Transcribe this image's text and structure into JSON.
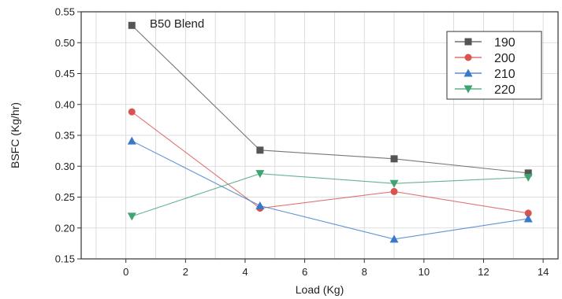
{
  "chart_data": {
    "type": "line",
    "title": "B50 Blend",
    "xlabel": "Load (Kg)",
    "ylabel": "BSFC (Kg/hr)",
    "xlim": [
      -1.5,
      14.5
    ],
    "ylim": [
      0.15,
      0.55
    ],
    "xticks": [
      0,
      2,
      4,
      6,
      8,
      10,
      12,
      14
    ],
    "yticks": [
      0.15,
      0.2,
      0.25,
      0.3,
      0.35,
      0.4,
      0.45,
      0.5,
      0.55
    ],
    "grid": true,
    "legend_position": "top-right",
    "x": [
      0.2,
      4.5,
      9,
      13.5
    ],
    "series": [
      {
        "name": "190",
        "values": [
          0.528,
          0.326,
          0.312,
          0.289
        ],
        "color": "#555555",
        "marker": "square"
      },
      {
        "name": "200",
        "values": [
          0.388,
          0.232,
          0.259,
          0.224
        ],
        "color": "#d9534f",
        "marker": "circle"
      },
      {
        "name": "210",
        "values": [
          0.341,
          0.236,
          0.182,
          0.215
        ],
        "color": "#3a78c9",
        "marker": "triangle-up"
      },
      {
        "name": "220",
        "values": [
          0.219,
          0.288,
          0.272,
          0.282
        ],
        "color": "#3fa372",
        "marker": "triangle-down"
      }
    ]
  }
}
